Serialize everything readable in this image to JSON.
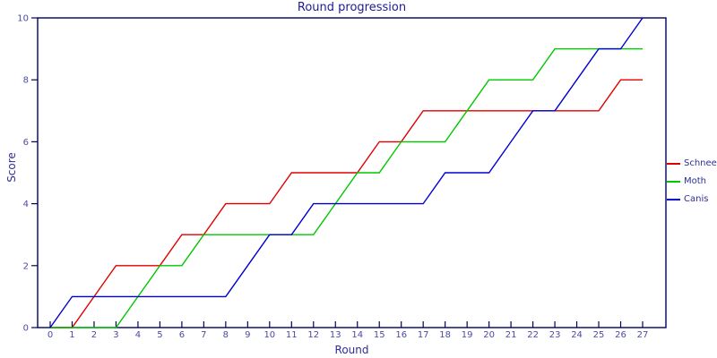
{
  "title": "Round progression",
  "chart_data": {
    "type": "line",
    "title": "Round progression",
    "xlabel": "Round",
    "ylabel": "Score",
    "x": [
      0,
      1,
      2,
      3,
      4,
      5,
      6,
      7,
      8,
      9,
      10,
      11,
      12,
      13,
      14,
      15,
      16,
      17,
      18,
      19,
      20,
      21,
      22,
      23,
      24,
      25,
      26,
      27
    ],
    "series": [
      {
        "name": "Schnee",
        "color": "#e00000",
        "values": [
          0,
          0,
          1,
          2,
          2,
          2,
          3,
          3,
          4,
          4,
          4,
          5,
          5,
          5,
          5,
          6,
          6,
          7,
          7,
          7,
          7,
          7,
          7,
          7,
          7,
          7,
          8,
          8
        ]
      },
      {
        "name": "Moth",
        "color": "#00c800",
        "values": [
          0,
          0,
          0,
          0,
          1,
          2,
          2,
          3,
          3,
          3,
          3,
          3,
          3,
          4,
          5,
          5,
          6,
          6,
          6,
          7,
          8,
          8,
          8,
          9,
          9,
          9,
          9,
          9
        ]
      },
      {
        "name": "Canis",
        "color": "#0000d0",
        "values": [
          0,
          1,
          1,
          1,
          1,
          1,
          1,
          1,
          1,
          2,
          3,
          3,
          4,
          4,
          4,
          4,
          4,
          4,
          5,
          5,
          5,
          6,
          7,
          7,
          8,
          9,
          9,
          10
        ]
      }
    ],
    "xlim": [
      0,
      27
    ],
    "ylim": [
      0,
      10
    ],
    "yticks": [
      0,
      2,
      4,
      6,
      8,
      10
    ],
    "grid": false,
    "legend_position": "right",
    "frame_color": "#000060",
    "tick_label_color": "#4a4aa8"
  }
}
